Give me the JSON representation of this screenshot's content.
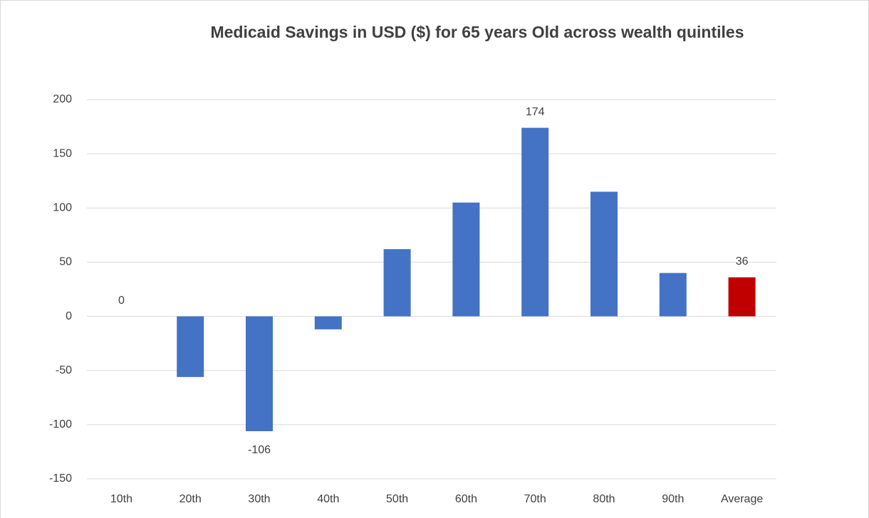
{
  "chart_data": {
    "type": "bar",
    "title": "Medicaid Savings in USD ($) for 65 years Old across wealth quintiles",
    "categories": [
      "10th",
      "20th",
      "30th",
      "40th",
      "50th",
      "60th",
      "70th",
      "80th",
      "90th",
      "Average"
    ],
    "values": [
      0,
      -56,
      -106,
      -12,
      62,
      105,
      174,
      115,
      40,
      36
    ],
    "value_labels": [
      "0",
      null,
      "-106",
      null,
      null,
      null,
      "174",
      null,
      null,
      "36"
    ],
    "colors": [
      "#4472c4",
      "#4472c4",
      "#4472c4",
      "#4472c4",
      "#4472c4",
      "#4472c4",
      "#4472c4",
      "#4472c4",
      "#4472c4",
      "#c00000"
    ],
    "ylim": [
      -150,
      200
    ],
    "yticks": [
      -150,
      -100,
      -50,
      0,
      50,
      100,
      150,
      200
    ],
    "grid": true
  }
}
